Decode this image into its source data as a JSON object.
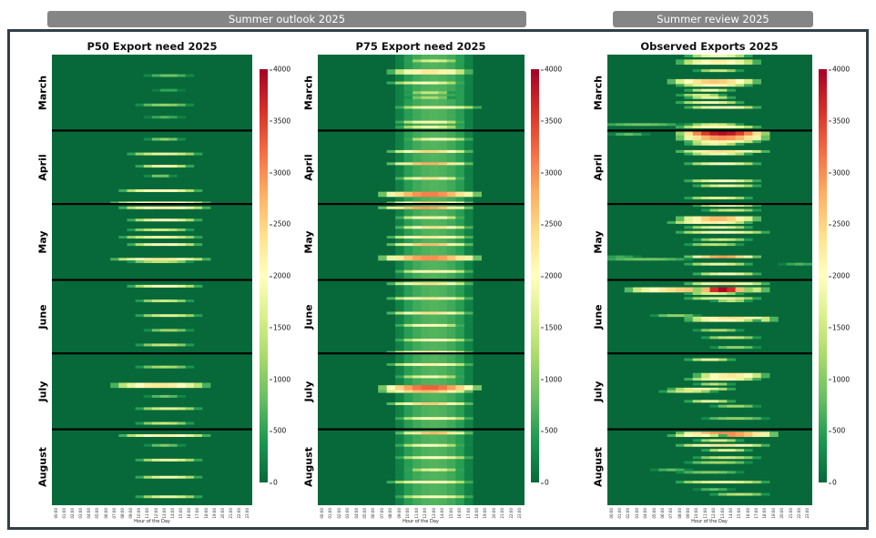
{
  "header_bars": [
    {
      "label": "Summer outlook 2025"
    },
    {
      "label": "Summer review 2025"
    }
  ],
  "colors": {
    "header_bar": "#858585",
    "frame_border": "#333e47",
    "separator_line": "#000000",
    "title_text": "#111111"
  },
  "chart_data": {
    "type": "heatmap",
    "xlabel": "Hour of the Day",
    "x_ticks": [
      "00:00",
      "01:00",
      "02:00",
      "03:00",
      "04:00",
      "05:00",
      "06:00",
      "07:00",
      "08:00",
      "09:00",
      "10:00",
      "11:00",
      "12:00",
      "13:00",
      "14:00",
      "15:00",
      "16:00",
      "17:00",
      "18:00",
      "19:00",
      "20:00",
      "21:00",
      "22:00",
      "23:00"
    ],
    "months": [
      {
        "name": "March",
        "days": 31
      },
      {
        "name": "April",
        "days": 30
      },
      {
        "name": "May",
        "days": 31
      },
      {
        "name": "June",
        "days": 30
      },
      {
        "name": "July",
        "days": 31
      },
      {
        "name": "August",
        "days": 31
      }
    ],
    "value_range": [
      0,
      4000
    ],
    "colorbar_ticks": [
      0,
      500,
      1000,
      1500,
      2000,
      2500,
      3000,
      3500,
      4000
    ],
    "colormap_name": "RdYlGn_r",
    "colormap_stops": [
      "#07693a",
      "#1a9850",
      "#66bd63",
      "#a6d96a",
      "#d9ef8b",
      "#ffffbf",
      "#fee08b",
      "#fdae61",
      "#f46d43",
      "#d73027",
      "#a50026"
    ],
    "streak_format": [
      "month_index",
      "day_index",
      "hour_start",
      "hour_end",
      "peak_value_MW",
      "row_span_optional"
    ],
    "panels": [
      {
        "title": "P50 Export need 2025",
        "band": null,
        "streaks": [
          [
            0,
            8,
            12,
            15,
            900
          ],
          [
            0,
            14,
            13,
            14,
            600
          ],
          [
            0,
            20,
            11,
            15,
            1100
          ],
          [
            0,
            25,
            12,
            14,
            700
          ],
          [
            1,
            3,
            12,
            14,
            1100
          ],
          [
            1,
            9,
            10,
            16,
            1800
          ],
          [
            1,
            14,
            11,
            15,
            1900
          ],
          [
            1,
            18,
            12,
            13,
            1000
          ],
          [
            1,
            24,
            9,
            16,
            2100
          ],
          [
            1,
            29,
            8,
            17,
            2200
          ],
          [
            2,
            1,
            9,
            17,
            2200
          ],
          [
            2,
            6,
            10,
            16,
            2000
          ],
          [
            2,
            10,
            10,
            15,
            1500
          ],
          [
            2,
            13,
            9,
            16,
            1800
          ],
          [
            2,
            16,
            10,
            16,
            2100
          ],
          [
            2,
            22,
            8,
            17,
            2300
          ],
          [
            2,
            23,
            10,
            15,
            1400
          ],
          [
            3,
            2,
            10,
            16,
            2000
          ],
          [
            3,
            8,
            11,
            15,
            1500
          ],
          [
            3,
            14,
            11,
            16,
            1700
          ],
          [
            3,
            20,
            12,
            15,
            1200
          ],
          [
            3,
            26,
            11,
            15,
            1500
          ],
          [
            4,
            5,
            11,
            15,
            1300
          ],
          [
            4,
            12,
            8,
            17,
            2300,
            2
          ],
          [
            4,
            17,
            12,
            14,
            900
          ],
          [
            4,
            22,
            11,
            16,
            1700
          ],
          [
            4,
            28,
            11,
            15,
            1500
          ],
          [
            5,
            2,
            9,
            17,
            2200
          ],
          [
            5,
            6,
            12,
            14,
            1000
          ],
          [
            5,
            12,
            11,
            16,
            1800
          ],
          [
            5,
            19,
            11,
            16,
            1900
          ],
          [
            5,
            27,
            11,
            16,
            1800
          ]
        ]
      },
      {
        "title": "P75 Export need 2025",
        "band": {
          "hour_start": 10,
          "hour_end": 16,
          "value": 700
        },
        "streaks": [
          [
            0,
            2,
            11,
            15,
            1700
          ],
          [
            0,
            6,
            9,
            16,
            2300,
            2
          ],
          [
            0,
            11,
            9,
            15,
            2000
          ],
          [
            0,
            15,
            11,
            14,
            1500
          ],
          [
            0,
            17,
            11,
            14,
            1300
          ],
          [
            0,
            21,
            10,
            17,
            2100
          ],
          [
            0,
            27,
            10,
            15,
            2100
          ],
          [
            0,
            29,
            10,
            15,
            1800
          ],
          [
            1,
            3,
            11,
            16,
            2000
          ],
          [
            1,
            8,
            9,
            16,
            2500
          ],
          [
            1,
            13,
            9,
            16,
            2800
          ],
          [
            1,
            19,
            10,
            15,
            2400
          ],
          [
            1,
            25,
            8,
            17,
            3100,
            2
          ],
          [
            1,
            29,
            9,
            16,
            2600
          ],
          [
            2,
            1,
            8,
            16,
            2900
          ],
          [
            2,
            5,
            10,
            15,
            2200
          ],
          [
            2,
            9,
            10,
            16,
            2400
          ],
          [
            2,
            13,
            9,
            16,
            2300
          ],
          [
            2,
            16,
            9,
            16,
            2700
          ],
          [
            2,
            21,
            8,
            17,
            3000,
            2
          ],
          [
            2,
            27,
            10,
            16,
            2200
          ],
          [
            3,
            1,
            9,
            16,
            2400
          ],
          [
            3,
            7,
            9,
            16,
            2300
          ],
          [
            3,
            13,
            9,
            16,
            2400
          ],
          [
            3,
            18,
            10,
            15,
            2100
          ],
          [
            3,
            24,
            10,
            16,
            2000
          ],
          [
            3,
            29,
            9,
            16,
            2200
          ],
          [
            4,
            4,
            9,
            16,
            2200
          ],
          [
            4,
            9,
            10,
            15,
            1900
          ],
          [
            4,
            13,
            8,
            17,
            3300,
            2
          ],
          [
            4,
            15,
            8,
            16,
            2700
          ],
          [
            4,
            20,
            9,
            16,
            2600
          ],
          [
            4,
            26,
            10,
            16,
            2100
          ],
          [
            5,
            1,
            10,
            16,
            2700
          ],
          [
            5,
            6,
            10,
            15,
            2000
          ],
          [
            5,
            11,
            10,
            16,
            2000
          ],
          [
            5,
            16,
            11,
            15,
            1800
          ],
          [
            5,
            21,
            9,
            16,
            2100
          ],
          [
            5,
            27,
            10,
            16,
            2000
          ]
        ]
      },
      {
        "title": "Observed Exports 2025",
        "band": null,
        "streaks": [
          [
            0,
            0,
            10,
            15,
            1900
          ],
          [
            0,
            2,
            9,
            16,
            2200,
            2
          ],
          [
            0,
            6,
            11,
            14,
            1500
          ],
          [
            0,
            10,
            8,
            16,
            2600,
            2
          ],
          [
            0,
            12,
            9,
            15,
            2000
          ],
          [
            0,
            14,
            10,
            13,
            1900
          ],
          [
            0,
            16,
            9,
            12,
            1600
          ],
          [
            0,
            17,
            10,
            13,
            1800
          ],
          [
            0,
            19,
            9,
            14,
            1900
          ],
          [
            0,
            21,
            10,
            16,
            2100
          ],
          [
            0,
            28,
            0,
            7,
            900
          ],
          [
            0,
            28,
            10,
            14,
            1600
          ],
          [
            0,
            29,
            9,
            16,
            2100
          ],
          [
            1,
            0,
            9,
            17,
            3900,
            2
          ],
          [
            1,
            1,
            1,
            3,
            800
          ],
          [
            1,
            2,
            9,
            17,
            3000,
            2
          ],
          [
            1,
            4,
            10,
            16,
            2200
          ],
          [
            1,
            5,
            10,
            14,
            1800
          ],
          [
            1,
            8,
            9,
            17,
            2400
          ],
          [
            1,
            9,
            10,
            15,
            1900
          ],
          [
            1,
            13,
            10,
            16,
            2000
          ],
          [
            1,
            20,
            10,
            16,
            2000
          ],
          [
            1,
            22,
            11,
            16,
            1800
          ],
          [
            1,
            27,
            10,
            15,
            1700
          ],
          [
            2,
            0,
            11,
            16,
            1900
          ],
          [
            2,
            2,
            12,
            16,
            1500
          ],
          [
            2,
            5,
            9,
            16,
            2700,
            2
          ],
          [
            2,
            7,
            8,
            15,
            2200
          ],
          [
            2,
            9,
            10,
            15,
            1800
          ],
          [
            2,
            11,
            9,
            17,
            2000
          ],
          [
            2,
            14,
            11,
            15,
            1500
          ],
          [
            2,
            16,
            10,
            14,
            1400
          ],
          [
            2,
            21,
            10,
            16,
            2900
          ],
          [
            2,
            21,
            0,
            2,
            600
          ],
          [
            2,
            22,
            0,
            8,
            900
          ],
          [
            2,
            24,
            10,
            15,
            1800
          ],
          [
            2,
            24,
            21,
            23,
            700
          ],
          [
            2,
            28,
            11,
            16,
            2000
          ],
          [
            3,
            1,
            10,
            17,
            2300
          ],
          [
            3,
            3,
            3,
            17,
            2600,
            2
          ],
          [
            3,
            3,
            11,
            15,
            3950,
            2
          ],
          [
            3,
            5,
            10,
            14,
            1700
          ],
          [
            3,
            7,
            10,
            16,
            1800
          ],
          [
            3,
            8,
            13,
            15,
            1400
          ],
          [
            3,
            14,
            6,
            9,
            1100
          ],
          [
            3,
            15,
            10,
            18,
            2400,
            2
          ],
          [
            3,
            16,
            10,
            16,
            2100
          ],
          [
            3,
            20,
            11,
            14,
            1300
          ],
          [
            3,
            23,
            12,
            16,
            1500
          ],
          [
            3,
            27,
            13,
            16,
            1100
          ],
          [
            4,
            2,
            10,
            13,
            1800
          ],
          [
            4,
            8,
            11,
            17,
            2300,
            2
          ],
          [
            4,
            10,
            10,
            16,
            2100
          ],
          [
            4,
            12,
            11,
            13,
            1400
          ],
          [
            4,
            14,
            8,
            13,
            1900
          ],
          [
            4,
            15,
            7,
            11,
            1600
          ],
          [
            4,
            19,
            10,
            13,
            1800
          ],
          [
            4,
            21,
            13,
            16,
            1200
          ],
          [
            4,
            26,
            12,
            17,
            1100
          ],
          [
            5,
            1,
            9,
            18,
            3000,
            2
          ],
          [
            5,
            2,
            8,
            12,
            2200
          ],
          [
            5,
            4,
            11,
            14,
            1600
          ],
          [
            5,
            6,
            9,
            17,
            2300
          ],
          [
            5,
            8,
            12,
            15,
            1700
          ],
          [
            5,
            11,
            11,
            16,
            1500
          ],
          [
            5,
            13,
            10,
            15,
            1200
          ],
          [
            5,
            16,
            6,
            8,
            800
          ],
          [
            5,
            17,
            9,
            14,
            1000
          ],
          [
            5,
            21,
            9,
            17,
            1800
          ],
          [
            5,
            24,
            11,
            13,
            800
          ],
          [
            5,
            26,
            13,
            17,
            1400
          ]
        ]
      }
    ]
  }
}
